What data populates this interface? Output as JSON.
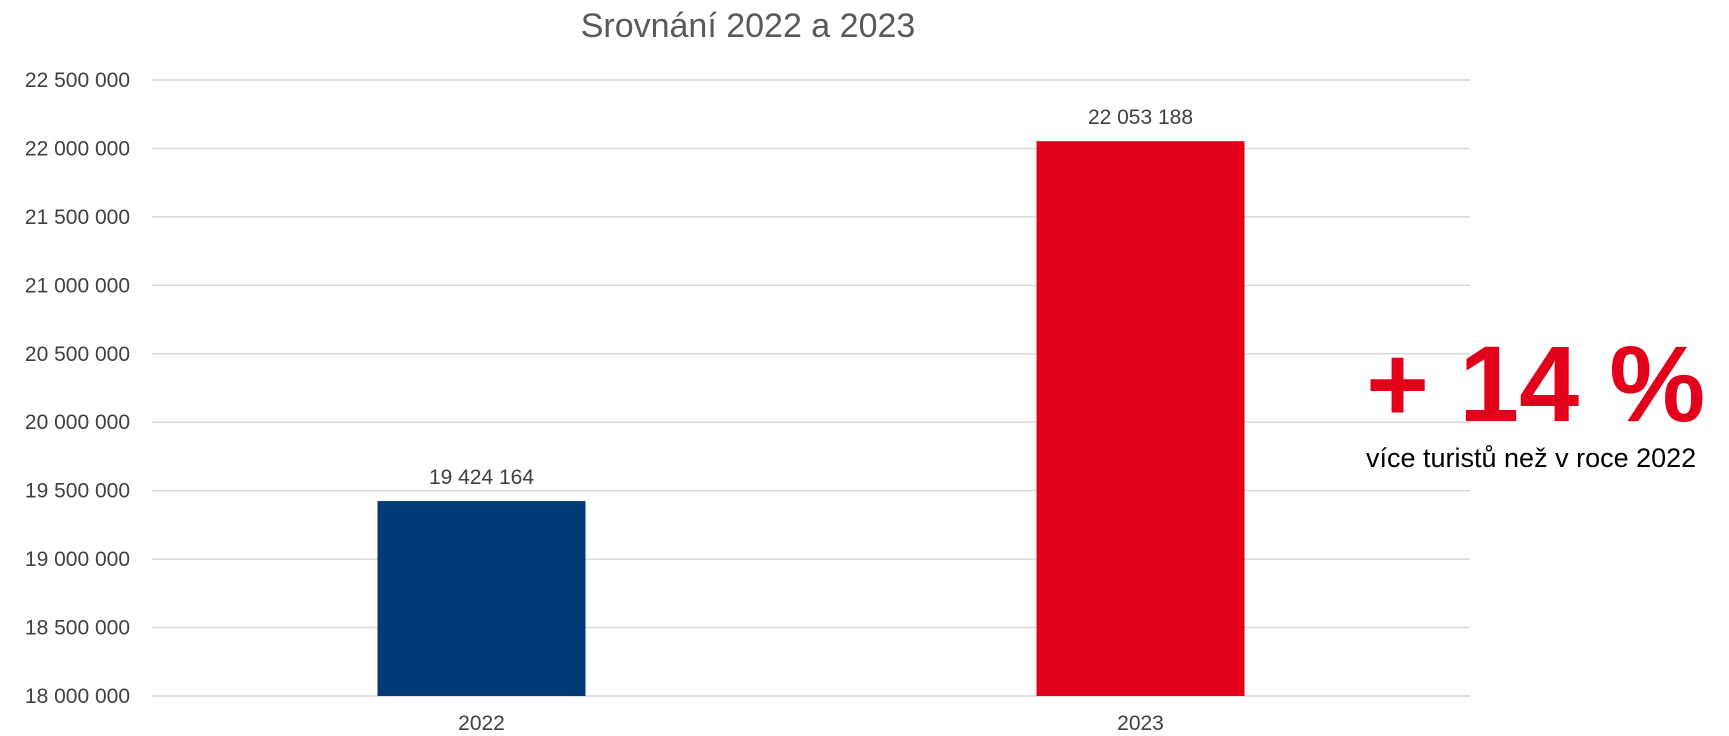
{
  "chart_data": {
    "type": "bar",
    "title": "Srovnání 2022 a 2023",
    "categories": [
      "2022",
      "2023"
    ],
    "values": [
      19424164,
      22053188
    ],
    "data_labels": [
      "19 424 164",
      "22 053 188"
    ],
    "bar_colors": [
      "#003b79",
      "#e2001a"
    ],
    "ylim": [
      18000000,
      22500000
    ],
    "yticks": [
      18000000,
      18500000,
      19000000,
      19500000,
      20000000,
      20500000,
      21000000,
      21500000,
      22000000,
      22500000
    ],
    "ytick_labels": [
      "18 000 000",
      "18 500 000",
      "19 000 000",
      "19 500 000",
      "20 000 000",
      "20 500 000",
      "21 000 000",
      "21 500 000",
      "22 000 000",
      "22 500 000"
    ],
    "grid": true,
    "legend": "none",
    "xlabel": "",
    "ylabel": ""
  },
  "callout": {
    "value": "+ 14 %",
    "text": "více turistů než v roce 2022",
    "color": "#e2001a"
  }
}
